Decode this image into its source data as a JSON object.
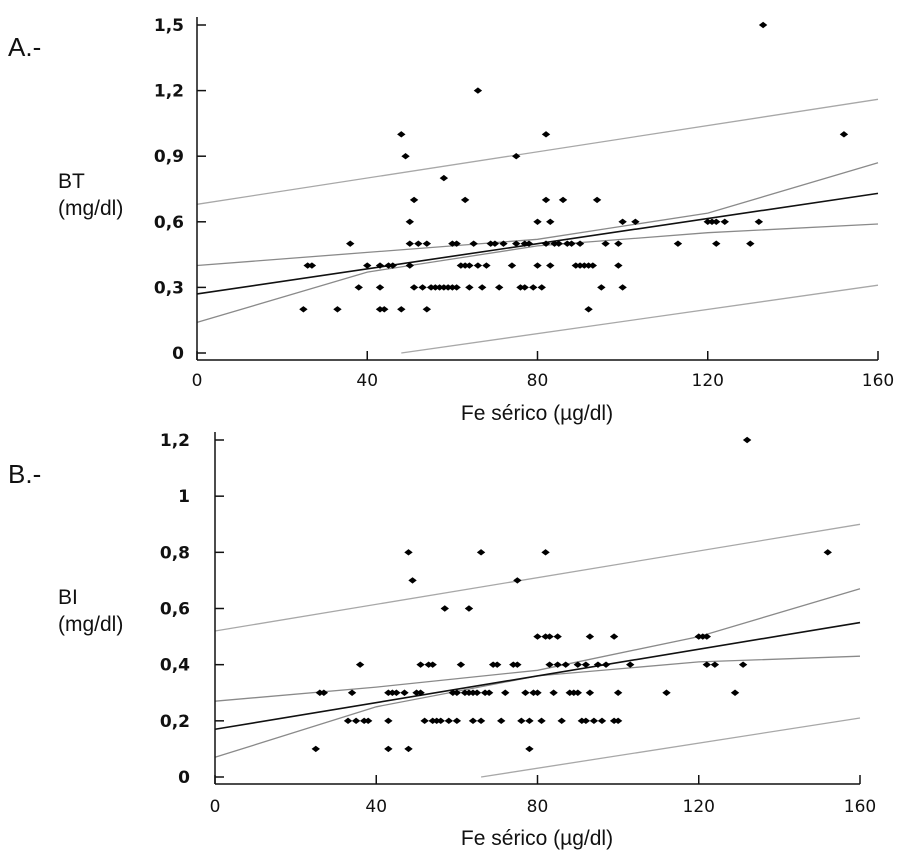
{
  "chart_data": [
    {
      "type": "scatter",
      "panel_label": "A.-",
      "ylabel_line1": "BT",
      "ylabel_line2": "(mg/dl)",
      "xlabel": "Fe sérico (µg/dl)",
      "xlim": [
        0,
        160
      ],
      "ylim": [
        0,
        1.5
      ],
      "xticks": [
        0,
        40,
        80,
        120,
        160
      ],
      "xtick_labels": [
        "0",
        "40",
        "80",
        "120",
        "160"
      ],
      "yticks": [
        0,
        0.3,
        0.6,
        0.9,
        1.2,
        1.5
      ],
      "ytick_labels": [
        "0",
        "0,3",
        "0,6",
        "0,9",
        "1,2",
        "1,5"
      ],
      "grid": false,
      "points": [
        [
          25,
          0.2
        ],
        [
          26,
          0.4
        ],
        [
          27,
          0.4
        ],
        [
          33,
          0.2
        ],
        [
          36,
          0.5
        ],
        [
          38,
          0.3
        ],
        [
          40,
          0.4
        ],
        [
          43,
          0.2
        ],
        [
          43,
          0.3
        ],
        [
          43,
          0.4
        ],
        [
          44,
          0.2
        ],
        [
          45,
          0.4
        ],
        [
          46,
          0.4
        ],
        [
          48,
          0.2
        ],
        [
          48,
          1.0
        ],
        [
          49,
          0.9
        ],
        [
          50,
          0.4
        ],
        [
          50,
          0.5
        ],
        [
          50,
          0.6
        ],
        [
          51,
          0.7
        ],
        [
          51,
          0.3
        ],
        [
          52,
          0.5
        ],
        [
          53,
          0.3
        ],
        [
          54,
          0.5
        ],
        [
          54,
          0.2
        ],
        [
          55,
          0.3
        ],
        [
          56,
          0.3
        ],
        [
          57,
          0.3
        ],
        [
          58,
          0.3
        ],
        [
          58,
          0.8
        ],
        [
          59,
          0.3
        ],
        [
          60,
          0.3
        ],
        [
          60,
          0.5
        ],
        [
          61,
          0.5
        ],
        [
          61,
          0.3
        ],
        [
          62,
          0.4
        ],
        [
          63,
          0.4
        ],
        [
          63,
          0.7
        ],
        [
          64,
          0.3
        ],
        [
          64,
          0.4
        ],
        [
          65,
          0.5
        ],
        [
          66,
          0.4
        ],
        [
          66,
          1.2
        ],
        [
          67,
          0.3
        ],
        [
          68,
          0.4
        ],
        [
          69,
          0.5
        ],
        [
          70,
          0.5
        ],
        [
          71,
          0.3
        ],
        [
          72,
          0.5
        ],
        [
          74,
          0.4
        ],
        [
          75,
          0.9
        ],
        [
          75,
          0.5
        ],
        [
          76,
          0.3
        ],
        [
          77,
          0.5
        ],
        [
          77,
          0.3
        ],
        [
          78,
          0.5
        ],
        [
          79,
          0.3
        ],
        [
          80,
          0.4
        ],
        [
          80,
          0.6
        ],
        [
          81,
          0.3
        ],
        [
          82,
          0.5
        ],
        [
          82,
          0.7
        ],
        [
          82,
          1.0
        ],
        [
          83,
          0.4
        ],
        [
          83,
          0.6
        ],
        [
          84,
          0.5
        ],
        [
          85,
          0.5
        ],
        [
          86,
          0.7
        ],
        [
          87,
          0.5
        ],
        [
          88,
          0.5
        ],
        [
          89,
          0.4
        ],
        [
          90,
          0.4
        ],
        [
          90,
          0.5
        ],
        [
          91,
          0.4
        ],
        [
          92,
          0.2
        ],
        [
          92,
          0.4
        ],
        [
          93,
          0.4
        ],
        [
          94,
          0.7
        ],
        [
          95,
          0.3
        ],
        [
          96,
          0.5
        ],
        [
          99,
          0.4
        ],
        [
          99,
          0.5
        ],
        [
          100,
          0.3
        ],
        [
          100,
          0.6
        ],
        [
          103,
          0.6
        ],
        [
          113,
          0.5
        ],
        [
          120,
          0.6
        ],
        [
          121,
          0.6
        ],
        [
          122,
          0.5
        ],
        [
          122,
          0.6
        ],
        [
          124,
          0.6
        ],
        [
          130,
          0.5
        ],
        [
          132,
          0.6
        ],
        [
          133,
          1.5
        ],
        [
          152,
          1.0
        ]
      ],
      "fit_line": [
        [
          0,
          0.27
        ],
        [
          160,
          0.73
        ]
      ],
      "ci_upper": [
        [
          0,
          0.4
        ],
        [
          40,
          0.46
        ],
        [
          80,
          0.52
        ],
        [
          120,
          0.64
        ],
        [
          160,
          0.87
        ]
      ],
      "ci_lower": [
        [
          0,
          0.14
        ],
        [
          40,
          0.37
        ],
        [
          80,
          0.49
        ],
        [
          120,
          0.55
        ],
        [
          160,
          0.59
        ]
      ],
      "pi_upper": [
        [
          0,
          0.68
        ],
        [
          160,
          1.16
        ]
      ],
      "pi_lower": [
        [
          48,
          0.0
        ],
        [
          160,
          0.31
        ]
      ]
    },
    {
      "type": "scatter",
      "panel_label": "B.-",
      "ylabel_line1": "BI",
      "ylabel_line2": "(mg/dl)",
      "xlabel": "Fe sérico (µg/dl)",
      "xlim": [
        0,
        160
      ],
      "ylim": [
        0,
        1.2
      ],
      "xticks": [
        0,
        40,
        80,
        120,
        160
      ],
      "xtick_labels": [
        "0",
        "40",
        "80",
        "120",
        "160"
      ],
      "yticks": [
        0,
        0.2,
        0.4,
        0.6,
        0.8,
        1.0,
        1.2
      ],
      "ytick_labels": [
        "0",
        "0,2",
        "0,4",
        "0,6",
        "0,8",
        "1",
        "1,2"
      ],
      "grid": false,
      "points": [
        [
          25,
          0.1
        ],
        [
          26,
          0.3
        ],
        [
          27,
          0.3
        ],
        [
          33,
          0.2
        ],
        [
          34,
          0.3
        ],
        [
          35,
          0.2
        ],
        [
          36,
          0.4
        ],
        [
          37,
          0.2
        ],
        [
          38,
          0.2
        ],
        [
          43,
          0.1
        ],
        [
          43,
          0.2
        ],
        [
          43,
          0.3
        ],
        [
          44,
          0.3
        ],
        [
          45,
          0.3
        ],
        [
          47,
          0.3
        ],
        [
          48,
          0.1
        ],
        [
          48,
          0.8
        ],
        [
          49,
          0.7
        ],
        [
          50,
          0.3
        ],
        [
          51,
          0.3
        ],
        [
          51,
          0.4
        ],
        [
          52,
          0.2
        ],
        [
          53,
          0.4
        ],
        [
          54,
          0.2
        ],
        [
          54,
          0.4
        ],
        [
          55,
          0.2
        ],
        [
          56,
          0.2
        ],
        [
          57,
          0.6
        ],
        [
          58,
          0.2
        ],
        [
          59,
          0.3
        ],
        [
          60,
          0.3
        ],
        [
          60,
          0.2
        ],
        [
          61,
          0.4
        ],
        [
          62,
          0.3
        ],
        [
          63,
          0.6
        ],
        [
          63,
          0.3
        ],
        [
          64,
          0.2
        ],
        [
          64,
          0.3
        ],
        [
          65,
          0.3
        ],
        [
          66,
          0.2
        ],
        [
          66,
          0.8
        ],
        [
          67,
          0.3
        ],
        [
          68,
          0.3
        ],
        [
          69,
          0.4
        ],
        [
          70,
          0.4
        ],
        [
          71,
          0.2
        ],
        [
          72,
          0.3
        ],
        [
          74,
          0.4
        ],
        [
          75,
          0.7
        ],
        [
          75,
          0.4
        ],
        [
          76,
          0.2
        ],
        [
          77,
          0.3
        ],
        [
          78,
          0.1
        ],
        [
          78,
          0.2
        ],
        [
          79,
          0.3
        ],
        [
          80,
          0.5
        ],
        [
          80,
          0.3
        ],
        [
          81,
          0.2
        ],
        [
          82,
          0.5
        ],
        [
          82,
          0.8
        ],
        [
          83,
          0.4
        ],
        [
          83,
          0.5
        ],
        [
          84,
          0.3
        ],
        [
          85,
          0.5
        ],
        [
          85,
          0.4
        ],
        [
          86,
          0.2
        ],
        [
          87,
          0.4
        ],
        [
          88,
          0.3
        ],
        [
          89,
          0.3
        ],
        [
          90,
          0.3
        ],
        [
          90,
          0.4
        ],
        [
          91,
          0.2
        ],
        [
          92,
          0.2
        ],
        [
          92,
          0.4
        ],
        [
          93,
          0.3
        ],
        [
          93,
          0.5
        ],
        [
          94,
          0.2
        ],
        [
          95,
          0.4
        ],
        [
          96,
          0.2
        ],
        [
          97,
          0.4
        ],
        [
          99,
          0.5
        ],
        [
          99,
          0.2
        ],
        [
          100,
          0.2
        ],
        [
          100,
          0.3
        ],
        [
          103,
          0.4
        ],
        [
          112,
          0.3
        ],
        [
          120,
          0.5
        ],
        [
          121,
          0.5
        ],
        [
          122,
          0.5
        ],
        [
          122,
          0.4
        ],
        [
          124,
          0.4
        ],
        [
          129,
          0.3
        ],
        [
          131,
          0.4
        ],
        [
          132,
          1.2
        ],
        [
          152,
          0.8
        ]
      ],
      "fit_line": [
        [
          0,
          0.17
        ],
        [
          160,
          0.55
        ]
      ],
      "ci_upper": [
        [
          0,
          0.27
        ],
        [
          40,
          0.32
        ],
        [
          80,
          0.38
        ],
        [
          120,
          0.5
        ],
        [
          160,
          0.67
        ]
      ],
      "ci_lower": [
        [
          0,
          0.07
        ],
        [
          40,
          0.25
        ],
        [
          80,
          0.36
        ],
        [
          120,
          0.41
        ],
        [
          160,
          0.43
        ]
      ],
      "pi_upper": [
        [
          0,
          0.52
        ],
        [
          160,
          0.9
        ]
      ],
      "pi_lower": [
        [
          66,
          0.0
        ],
        [
          160,
          0.21
        ]
      ]
    }
  ]
}
